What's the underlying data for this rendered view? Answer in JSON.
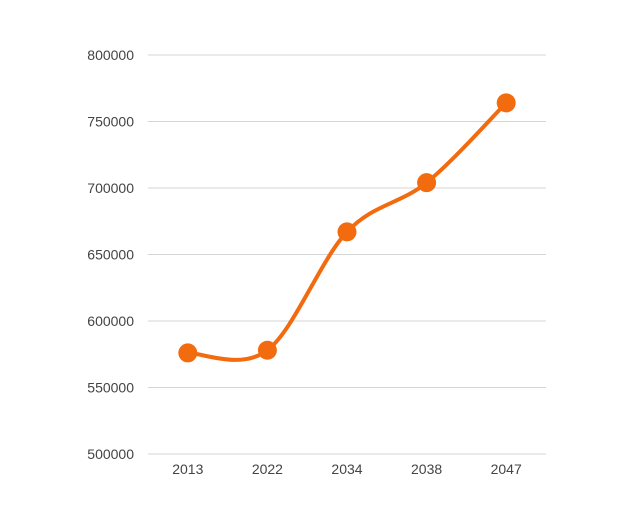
{
  "chart_data": {
    "type": "line",
    "title": "",
    "xlabel": "",
    "ylabel": "",
    "categories": [
      "2013",
      "2022",
      "2034",
      "2038",
      "2047"
    ],
    "series": [
      {
        "values": [
          576000,
          578000,
          667000,
          704000,
          764000
        ]
      }
    ],
    "ylim": [
      500000,
      800000
    ],
    "yticks": [
      "500000",
      "550000",
      "600000",
      "650000",
      "700000",
      "750000",
      "800000"
    ],
    "grid": true,
    "legend": "none",
    "line_style": "smooth",
    "colors": {
      "series": "#F26B0F",
      "grid": "#d4d4d4",
      "text": "#444444"
    }
  }
}
